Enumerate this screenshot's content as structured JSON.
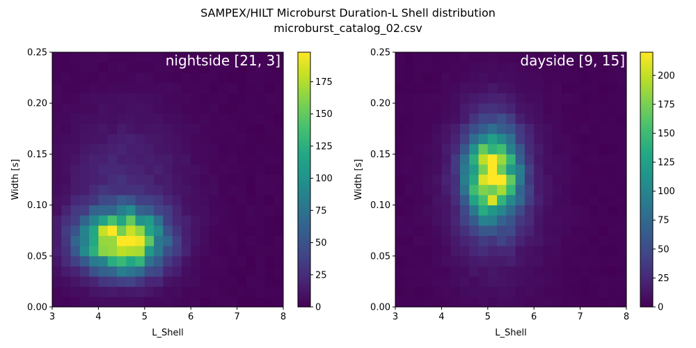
{
  "figure": {
    "title_line1": "SAMPEX/HILT Microburst Duration-L Shell distribution",
    "title_line2": "microburst_catalog_02.csv"
  },
  "colormap": "viridis",
  "chart_data": [
    {
      "type": "heatmap",
      "label": "nightside [21, 3]",
      "xlabel": "L_Shell",
      "ylabel": "Width [s]",
      "xlim": [
        3,
        8
      ],
      "ylim": [
        0,
        0.25
      ],
      "x_bins": 25,
      "y_bins": 25,
      "x_ticks": [
        "3",
        "4",
        "5",
        "6",
        "7",
        "8"
      ],
      "y_ticks": [
        "0.00",
        "0.05",
        "0.10",
        "0.15",
        "0.20",
        "0.25"
      ],
      "colorbar": {
        "min": 0,
        "max": 198,
        "ticks": [
          "0",
          "25",
          "50",
          "75",
          "100",
          "125",
          "150",
          "175"
        ]
      },
      "peak": {
        "l_shell": 4.5,
        "width": 0.065,
        "count": 198
      },
      "components": [
        {
          "l_center": 4.5,
          "w_center": 0.065,
          "l_sigma": 0.6,
          "w_sigma": 0.02,
          "amplitude": 195
        },
        {
          "l_center": 4.6,
          "w_center": 0.11,
          "l_sigma": 0.9,
          "w_sigma": 0.055,
          "amplitude": 22
        }
      ]
    },
    {
      "type": "heatmap",
      "label": "dayside [9, 15]",
      "xlabel": "L_Shell",
      "ylabel": "Width [s]",
      "xlim": [
        3,
        8
      ],
      "ylim": [
        0,
        0.25
      ],
      "x_bins": 25,
      "y_bins": 25,
      "x_ticks": [
        "3",
        "4",
        "5",
        "6",
        "7",
        "8"
      ],
      "y_ticks": [
        "0.00",
        "0.05",
        "0.10",
        "0.15",
        "0.20",
        "0.25"
      ],
      "colorbar": {
        "min": 0,
        "max": 220,
        "ticks": [
          "0",
          "25",
          "50",
          "75",
          "100",
          "125",
          "150",
          "175",
          "200"
        ]
      },
      "peak": {
        "l_shell": 5.1,
        "width": 0.13,
        "count": 220
      },
      "components": [
        {
          "l_center": 5.1,
          "w_center": 0.13,
          "l_sigma": 0.38,
          "w_sigma": 0.03,
          "amplitude": 212
        },
        {
          "l_center": 5.15,
          "w_center": 0.115,
          "l_sigma": 0.75,
          "w_sigma": 0.06,
          "amplitude": 25
        }
      ]
    }
  ]
}
